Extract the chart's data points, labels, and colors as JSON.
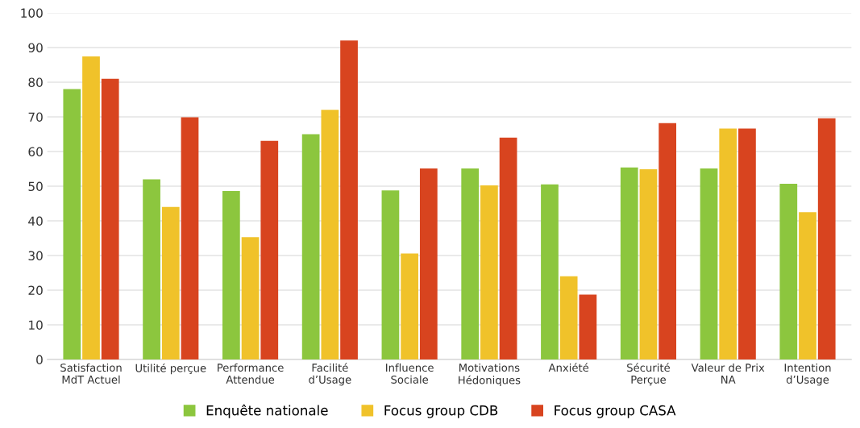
{
  "chart_data": {
    "type": "bar",
    "categories": [
      "Satisfaction\nMdT Actuel",
      "Utilité perçue",
      "Performance\nAttendue",
      "Facilité\nd’Usage",
      "Influence\nSociale",
      "Motivations\nHédoniques",
      "Anxiété",
      "Sécurité\nPerçue",
      "Valeur de Prix\nNA",
      "Intention\nd’Usage"
    ],
    "series": [
      {
        "name": "Enquête nationale",
        "color": "#8cc63e",
        "values": [
          78,
          52,
          48.6,
          65,
          48.8,
          55.1,
          50.5,
          55.4,
          55.1,
          50.7
        ]
      },
      {
        "name": "Focus group CDB",
        "color": "#f0c22a",
        "values": [
          87.4,
          44,
          35.3,
          72,
          30.6,
          50.2,
          24,
          54.9,
          66.6,
          42.5
        ]
      },
      {
        "name": "Focus group CASA",
        "color": "#d8441f",
        "values": [
          81,
          69.9,
          63.1,
          92,
          55.1,
          64,
          18.7,
          68.2,
          66.6,
          69.6
        ]
      }
    ],
    "ylim": [
      0,
      100
    ],
    "yticks": [
      0,
      10,
      20,
      30,
      40,
      50,
      60,
      70,
      80,
      90,
      100
    ],
    "grid": "y",
    "legend": "bottom"
  }
}
